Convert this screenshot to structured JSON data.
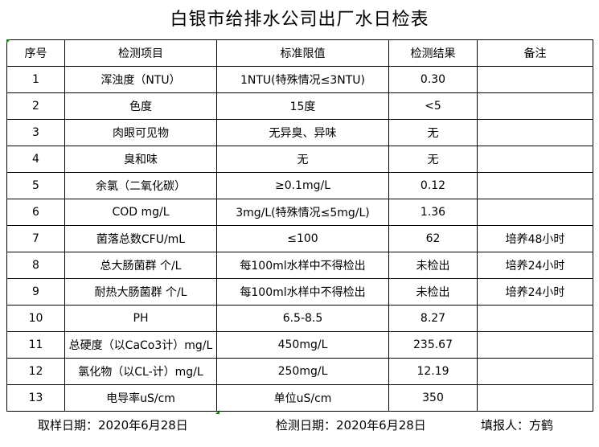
{
  "title": "白银市给排水公司出厂水日检表",
  "headers": [
    "序号",
    "检测项目",
    "标准限值",
    "检测结果",
    "备注"
  ],
  "rows": [
    [
      "1",
      "浑浊度（NTU）",
      "1NTU(特殊情况≤3NTU)",
      "0.30",
      ""
    ],
    [
      "2",
      "色度",
      "15度",
      "<5",
      ""
    ],
    [
      "3",
      "肉眼可见物",
      "无异臭、异味",
      "无",
      ""
    ],
    [
      "4",
      "臭和味",
      "无",
      "无",
      ""
    ],
    [
      "5",
      "余氯（二氧化碳）",
      "≥0.1mg/L",
      "0.12",
      ""
    ],
    [
      "6",
      "COD          mg/L",
      "3mg/L(特殊情况≤5mg/L)",
      "1.36",
      ""
    ],
    [
      "7",
      "菌落总数CFU/mL",
      "≤100",
      "62",
      "培养48小时"
    ],
    [
      "8",
      "总大肠菌群 个/L",
      "每100ml水样中不得检出",
      "未检出",
      "培养24小时"
    ],
    [
      "9",
      "耐热大肠菌群 个/L",
      "每100ml水样中不得检出",
      "未检出",
      "培养24小时"
    ],
    [
      "10",
      "PH",
      "6.5-8.5",
      "8.27",
      ""
    ],
    [
      "11",
      "总硬度（以CaCo3计）mg/L",
      "450mg/L",
      "235.67",
      ""
    ],
    [
      "12",
      "氯化物（以CL-计）mg/L",
      "250mg/L",
      "12.19",
      ""
    ],
    [
      "13",
      "电导率uS/cm",
      "单位uS/cm",
      "350",
      ""
    ]
  ],
  "footer": {
    "sample_date": "取样日期：2020年6月28日",
    "test_date": "检测日期：2020年6月28日",
    "reporter": "填报人：方鹤"
  }
}
